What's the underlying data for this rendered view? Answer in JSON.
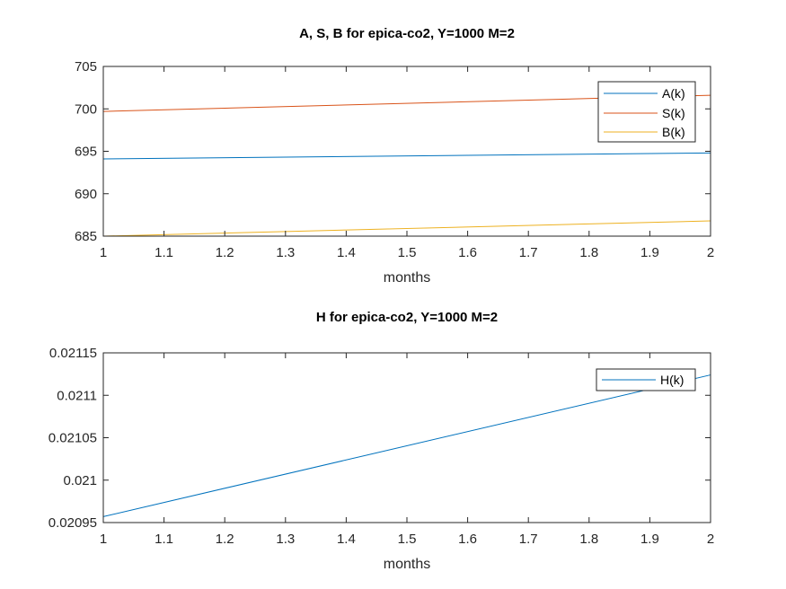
{
  "chart_data": [
    {
      "type": "line",
      "title": "A, S, B for epica-co2, Y=1000 M=2",
      "xlabel": "months",
      "ylabel": "",
      "xlim": [
        1,
        2
      ],
      "ylim": [
        685,
        705
      ],
      "xticks": [
        "1",
        "1.1",
        "1.2",
        "1.3",
        "1.4",
        "1.5",
        "1.6",
        "1.7",
        "1.8",
        "1.9",
        "2"
      ],
      "yticks": [
        "685",
        "690",
        "695",
        "700",
        "705"
      ],
      "legend_position": "top-right",
      "grid": false,
      "series": [
        {
          "name": "A(k)",
          "color": "#0072BD",
          "x": [
            1,
            2
          ],
          "y": [
            694.1,
            694.8
          ]
        },
        {
          "name": "S(k)",
          "color": "#D95319",
          "x": [
            1,
            2
          ],
          "y": [
            699.7,
            701.6
          ]
        },
        {
          "name": "B(k)",
          "color": "#EDB120",
          "x": [
            1,
            2
          ],
          "y": [
            685.0,
            686.8
          ]
        }
      ]
    },
    {
      "type": "line",
      "title": "H for epica-co2, Y=1000 M=2",
      "xlabel": "months",
      "ylabel": "",
      "xlim": [
        1,
        2
      ],
      "ylim": [
        0.02095,
        0.02115
      ],
      "xticks": [
        "1",
        "1.1",
        "1.2",
        "1.3",
        "1.4",
        "1.5",
        "1.6",
        "1.7",
        "1.8",
        "1.9",
        "2"
      ],
      "yticks": [
        "0.02095",
        "0.021",
        "0.02105",
        "0.0211",
        "0.02115"
      ],
      "legend_position": "top-right",
      "grid": false,
      "series": [
        {
          "name": "H(k)",
          "color": "#0072BD",
          "x": [
            1,
            2
          ],
          "y": [
            0.020957,
            0.021124
          ]
        }
      ]
    }
  ]
}
